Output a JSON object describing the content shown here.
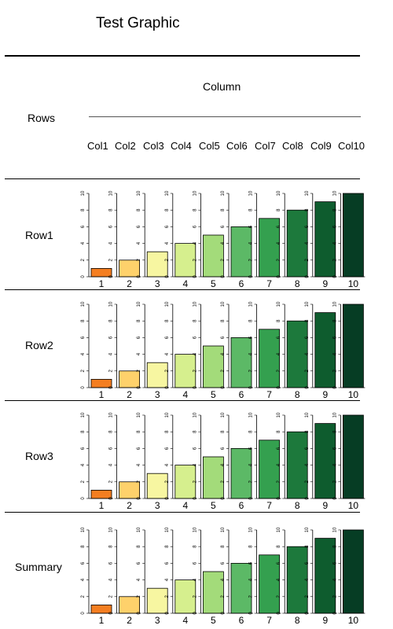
{
  "title": "Test Graphic",
  "column_header": "Column",
  "rows_header": "Rows",
  "columns": [
    "Col1",
    "Col2",
    "Col3",
    "Col4",
    "Col5",
    "Col6",
    "Col7",
    "Col8",
    "Col9",
    "Col10"
  ],
  "rows": [
    "Row1",
    "Row2",
    "Row3",
    "Summary"
  ],
  "colors": [
    "#f47e21",
    "#fed16b",
    "#f7f6a1",
    "#d6ef8e",
    "#a3db7a",
    "#5cb966",
    "#34a04f",
    "#1d793c",
    "#0e5c2e",
    "#063d24"
  ],
  "chart_data": {
    "type": "bar",
    "panels_note": "4 rows x 10 columns of single-bar panels",
    "ylim": [
      0,
      10
    ],
    "y_ticks": [
      "0",
      "2",
      "4",
      "6",
      "8",
      "10"
    ],
    "categories": [
      "1",
      "2",
      "3",
      "4",
      "5",
      "6",
      "7",
      "8",
      "9",
      "10"
    ],
    "series": [
      {
        "name": "Row1",
        "values": [
          1,
          2,
          3,
          4,
          5,
          6,
          7,
          8,
          9,
          10
        ]
      },
      {
        "name": "Row2",
        "values": [
          1,
          2,
          3,
          4,
          5,
          6,
          7,
          8,
          9,
          10
        ]
      },
      {
        "name": "Row3",
        "values": [
          1,
          2,
          3,
          4,
          5,
          6,
          7,
          8,
          9,
          10
        ]
      },
      {
        "name": "Summary",
        "values": [
          1,
          2,
          3,
          4,
          5,
          6,
          7,
          8,
          9,
          10
        ]
      }
    ]
  }
}
